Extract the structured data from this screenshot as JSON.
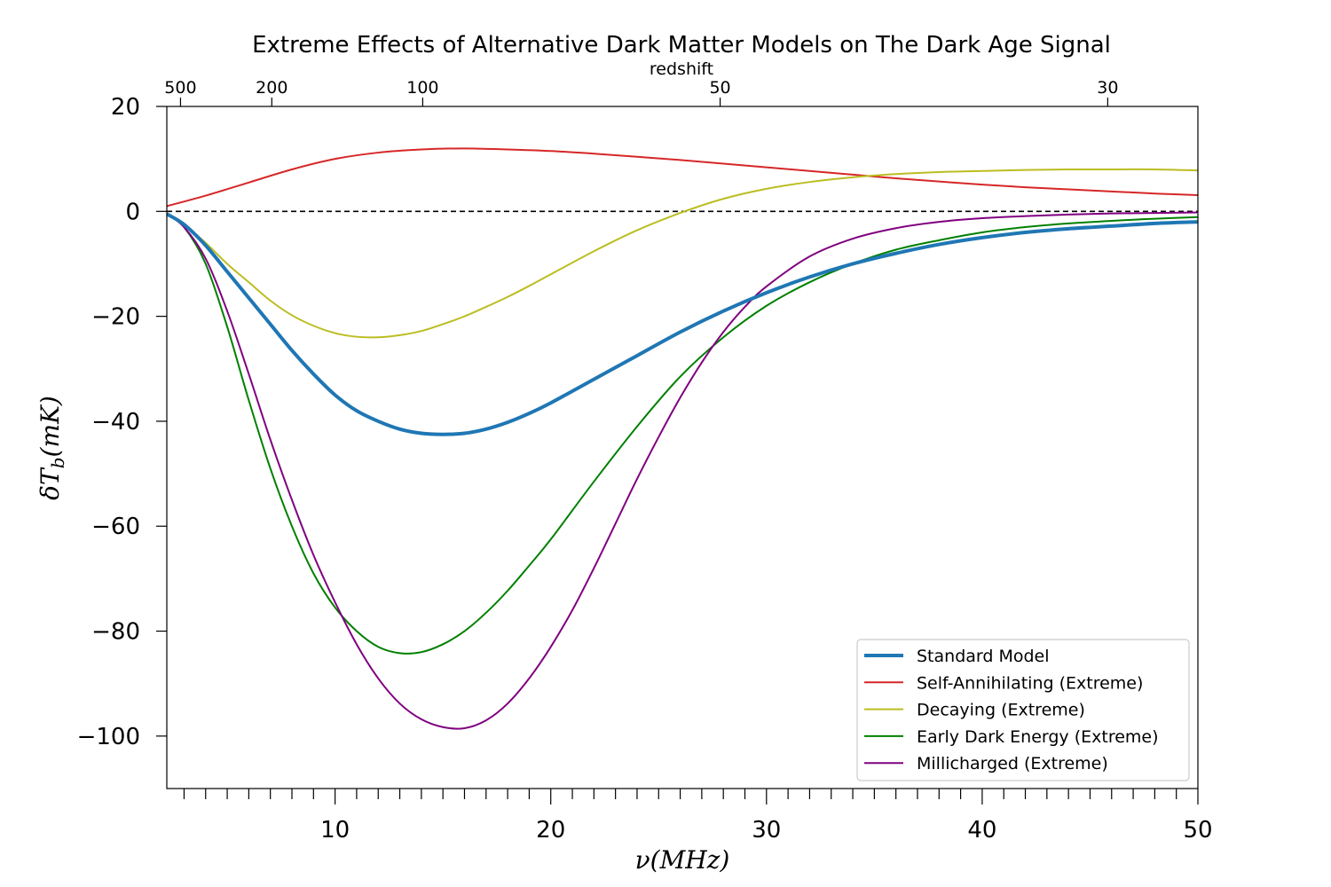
{
  "chart_data": {
    "type": "line",
    "title": "Extreme Effects of Alternative Dark Matter Models on The Dark Age Signal",
    "xlabel": "ν(MHz)",
    "ylabel": "δT_b(mK)",
    "top_axis_label": "redshift",
    "xlim": [
      2.2,
      50
    ],
    "ylim": [
      -110,
      20
    ],
    "x_ticks": [
      10,
      20,
      30,
      40,
      50
    ],
    "x_tick_labels": [
      "10",
      "20",
      "30",
      "40",
      "50"
    ],
    "y_ticks": [
      20,
      0,
      -20,
      -40,
      -60,
      -80,
      -100
    ],
    "y_tick_labels": [
      "20",
      "0",
      "−20",
      "−40",
      "−60",
      "−80",
      "−100"
    ],
    "top_ticks": [
      500,
      200,
      100,
      50,
      30
    ],
    "top_tick_labels": [
      "500",
      "200",
      "100",
      "50",
      "30"
    ],
    "zero_line": true,
    "legend_position": "lower-right",
    "series": [
      {
        "name": "Standard Model",
        "color": "#1f77b4",
        "x": [
          2.2,
          3,
          4,
          5,
          6,
          7,
          8,
          9,
          10,
          11,
          12,
          13,
          14,
          15,
          16,
          17,
          18,
          19,
          20,
          22,
          24,
          26,
          28,
          30,
          32,
          34,
          36,
          38,
          40,
          42,
          44,
          46,
          48,
          50
        ],
        "y": [
          -0.5,
          -2.5,
          -6.5,
          -11.5,
          -16.5,
          -21.5,
          -26.5,
          -31,
          -35,
          -38,
          -40,
          -41.5,
          -42.3,
          -42.5,
          -42.3,
          -41.5,
          -40.2,
          -38.5,
          -36.5,
          -32,
          -27.5,
          -23,
          -19,
          -15.5,
          -12.5,
          -10,
          -8,
          -6.3,
          -5,
          -4,
          -3.3,
          -2.8,
          -2.3,
          -2
        ]
      },
      {
        "name": "Self-Annihilating (Extreme)",
        "color": "#d62728",
        "x": [
          2.2,
          4,
          6,
          8,
          10,
          12,
          14,
          16,
          18,
          20,
          22,
          24,
          26,
          28,
          30,
          32,
          34,
          36,
          38,
          40,
          42,
          44,
          46,
          48,
          50
        ],
        "y": [
          1,
          3,
          5.5,
          8,
          10,
          11.2,
          11.8,
          12,
          11.8,
          11.5,
          11,
          10.4,
          9.8,
          9.1,
          8.4,
          7.7,
          7,
          6.3,
          5.7,
          5.1,
          4.6,
          4.2,
          3.8,
          3.4,
          3.1
        ]
      },
      {
        "name": "Decaying (Extreme)",
        "color": "#bcbd22",
        "x": [
          2.2,
          3,
          4,
          5,
          6,
          7,
          8,
          9,
          10,
          11,
          12,
          13,
          14,
          15,
          16,
          17,
          18,
          19,
          20,
          22,
          24,
          26,
          28,
          30,
          32,
          34,
          36,
          38,
          40,
          42,
          44,
          46,
          48,
          50
        ],
        "y": [
          -0.5,
          -2.5,
          -6,
          -10,
          -13.5,
          -17,
          -19.8,
          -21.8,
          -23.2,
          -23.9,
          -24,
          -23.6,
          -22.8,
          -21.5,
          -20,
          -18.2,
          -16.3,
          -14.2,
          -12,
          -7.6,
          -3.6,
          -0.3,
          2.4,
          4.3,
          5.6,
          6.5,
          7.1,
          7.5,
          7.7,
          7.9,
          8,
          8,
          8,
          7.8
        ]
      },
      {
        "name": "Early Dark Energy (Extreme)",
        "color": "#008000",
        "x": [
          2.2,
          3,
          4,
          5,
          6,
          7,
          8,
          9,
          10,
          11,
          12,
          13,
          14,
          15,
          16,
          17,
          18,
          19,
          20,
          22,
          24,
          26,
          28,
          30,
          32,
          34,
          36,
          38,
          40,
          42,
          44,
          46,
          48,
          50
        ],
        "y": [
          -0.5,
          -3,
          -10,
          -22,
          -36,
          -49,
          -60,
          -69,
          -75.5,
          -80,
          -83,
          -84.2,
          -84,
          -82.5,
          -80,
          -76.5,
          -72.3,
          -67.5,
          -62.5,
          -51.5,
          -41,
          -31.5,
          -24,
          -18,
          -13.5,
          -10,
          -7.3,
          -5.5,
          -4,
          -3,
          -2.3,
          -1.8,
          -1.4,
          -1.1
        ]
      },
      {
        "name": "Millicharged (Extreme)",
        "color": "#800080",
        "x": [
          2.2,
          3,
          4,
          5,
          6,
          7,
          8,
          9,
          10,
          11,
          12,
          13,
          14,
          15,
          16,
          17,
          18,
          19,
          20,
          21,
          22,
          23,
          24,
          25,
          26,
          27,
          28,
          29,
          30,
          32,
          34,
          36,
          38,
          40,
          42,
          44,
          46,
          48,
          50
        ],
        "y": [
          -0.5,
          -3,
          -9,
          -19,
          -31,
          -43.5,
          -55,
          -65.5,
          -74.5,
          -82.5,
          -89,
          -93.8,
          -96.8,
          -98.3,
          -98.5,
          -97,
          -93.8,
          -89,
          -83,
          -76,
          -68,
          -59.5,
          -51,
          -43,
          -35.5,
          -28.8,
          -23,
          -18.2,
          -14.3,
          -8.6,
          -5.2,
          -3.2,
          -2,
          -1.3,
          -0.9,
          -0.6,
          -0.4,
          -0.3,
          -0.2
        ]
      }
    ]
  }
}
